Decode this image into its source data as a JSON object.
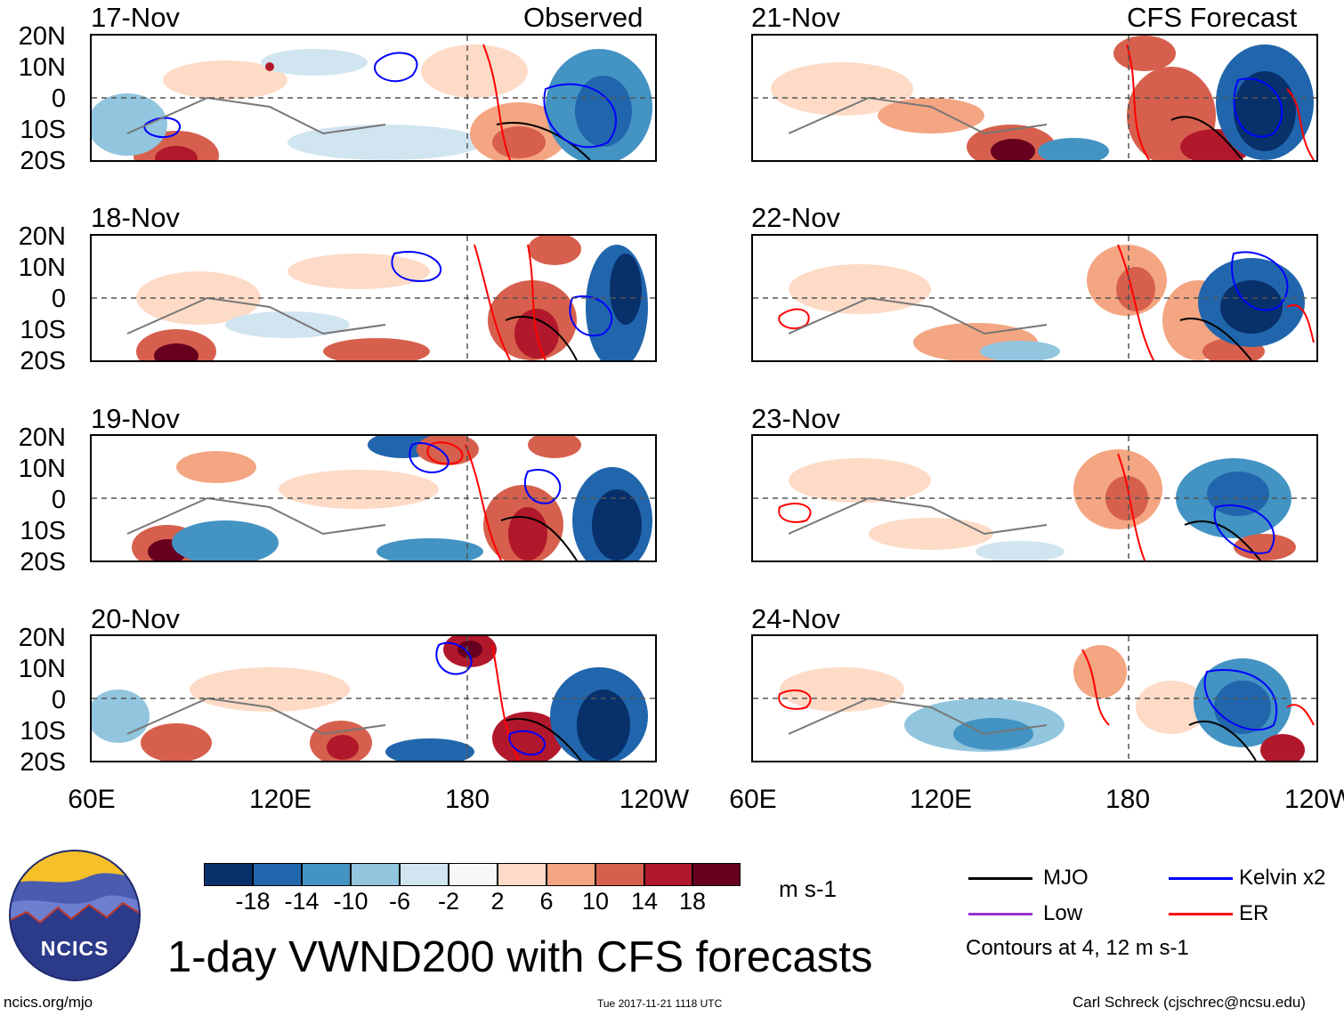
{
  "header": {
    "observed_label": "Observed",
    "forecast_label": "CFS Forecast"
  },
  "panels_left": [
    {
      "date": "17-Nov"
    },
    {
      "date": "18-Nov"
    },
    {
      "date": "19-Nov"
    },
    {
      "date": "20-Nov"
    }
  ],
  "panels_right": [
    {
      "date": "21-Nov"
    },
    {
      "date": "22-Nov"
    },
    {
      "date": "23-Nov"
    },
    {
      "date": "24-Nov"
    }
  ],
  "axes": {
    "y_ticks": [
      "20N",
      "10N",
      "0",
      "10S",
      "20S"
    ],
    "x_ticks": [
      "60E",
      "120E",
      "180",
      "120W"
    ]
  },
  "colorbar": {
    "labels": [
      "-18",
      "-14",
      "-10",
      "-6",
      "-2",
      "2",
      "6",
      "10",
      "14",
      "18"
    ],
    "colors": [
      "#08306b",
      "#2166ac",
      "#4393c3",
      "#92c5de",
      "#d1e5f0",
      "#f7f7f7",
      "#fddbc7",
      "#f4a582",
      "#d6604d",
      "#b2182b",
      "#67001f"
    ],
    "units": "m s-1"
  },
  "legend": {
    "items": [
      {
        "label": "MJO",
        "color": "#000000"
      },
      {
        "label": "Kelvin x2",
        "color": "#0000ff"
      },
      {
        "label": "Low",
        "color": "#9932cc"
      },
      {
        "label": "ER",
        "color": "#ff0000"
      }
    ],
    "note": "Contours at 4, 12 m s-1"
  },
  "title": "1-day VWND200 with CFS forecasts",
  "logo": {
    "text": "NCICS"
  },
  "footer": {
    "left": "ncics.org/mjo",
    "center": "Tue 2017-11-21 1118 UTC",
    "right": "Carl Schreck (cjschrec@ncsu.edu)"
  },
  "chart_data": {
    "type": "heatmap",
    "title": "1-day VWND200 with CFS forecasts",
    "variable": "200-hPa meridional wind",
    "units": "m s-1",
    "xlim": [
      60,
      240
    ],
    "ylim": [
      -20,
      20
    ],
    "xlabel": "",
    "ylabel": "",
    "observed_dates": [
      "17-Nov",
      "18-Nov",
      "19-Nov",
      "20-Nov"
    ],
    "forecast_dates": [
      "21-Nov",
      "22-Nov",
      "23-Nov",
      "24-Nov"
    ],
    "color_levels": [
      -18,
      -14,
      -10,
      -6,
      -2,
      2,
      6,
      10,
      14,
      18
    ],
    "contour_levels": [
      4,
      12
    ],
    "series": [
      {
        "name": "MJO",
        "color": "#000000"
      },
      {
        "name": "Kelvin x2",
        "color": "#0000ff"
      },
      {
        "name": "Low",
        "color": "#9932cc"
      },
      {
        "name": "ER",
        "color": "#ff0000"
      }
    ]
  }
}
